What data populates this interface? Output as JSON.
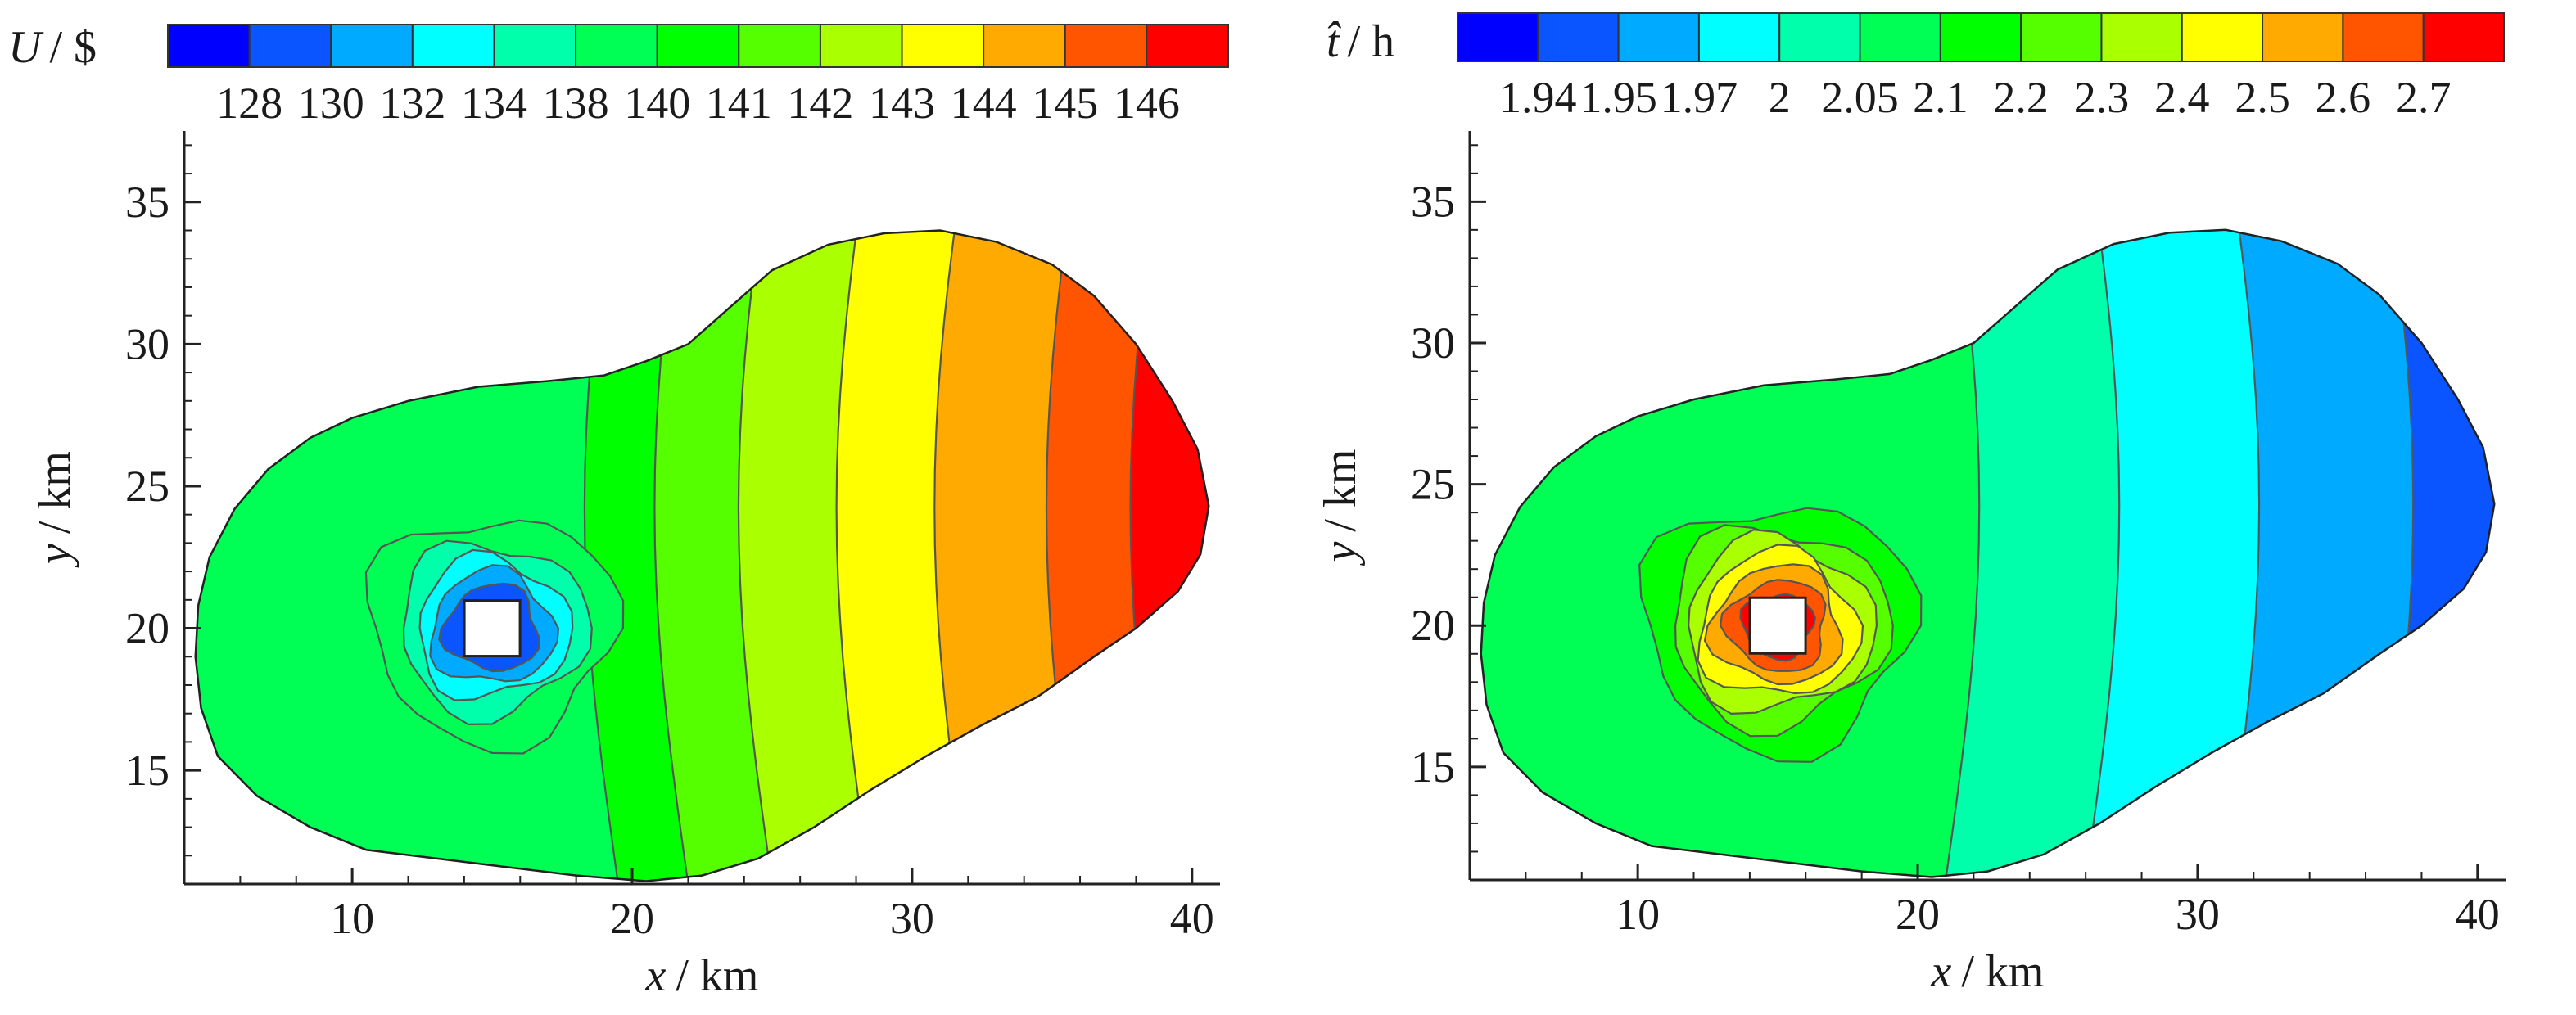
{
  "chart_data": [
    {
      "type": "heatmap",
      "subtype": "filled-contour",
      "colorbar": {
        "label_var": "U",
        "label_unit": "/ $",
        "levels": [
          "128",
          "130",
          "132",
          "134",
          "138",
          "140",
          "141",
          "142",
          "143",
          "144",
          "145",
          "146"
        ],
        "colors": [
          "#0000ff",
          "#0a55ff",
          "#00aaff",
          "#00ffff",
          "#00ffaa",
          "#00ff55",
          "#00ff00",
          "#55ff00",
          "#aaff00",
          "#ffff00",
          "#ffaa00",
          "#ff5500",
          "#ff0000"
        ]
      },
      "xlabel_var": "x",
      "xlabel_unit": "/ km",
      "ylabel_var": "y",
      "ylabel_unit": "/ km",
      "xlim": [
        4,
        41
      ],
      "ylim": [
        11,
        37.5
      ],
      "xticks": [
        "10",
        "20",
        "30",
        "40"
      ],
      "xtick_values": [
        10,
        20,
        30,
        40
      ],
      "yticks": [
        "15",
        "20",
        "25",
        "30",
        "35"
      ],
      "ytick_values": [
        15,
        20,
        25,
        30,
        35
      ],
      "depot": {
        "x": 15,
        "y": 20
      },
      "field": {
        "kind": "radial_then_linear",
        "center": [
          15,
          20
        ],
        "inner_levels": [
          {
            "r": 1.6,
            "color_index": 1
          },
          {
            "r": 2.1,
            "color_index": 2
          },
          {
            "r": 2.6,
            "color_index": 3
          },
          {
            "r": 3.2,
            "color_index": 4
          },
          {
            "r": 4.2,
            "color_index": 5
          }
        ],
        "bands_x": [
          {
            "x0": 19.5,
            "color_index": 6
          },
          {
            "x0": 22.0,
            "color_index": 7
          },
          {
            "x0": 25.0,
            "color_index": 8
          },
          {
            "x0": 28.5,
            "color_index": 9
          },
          {
            "x0": 32.0,
            "color_index": 10
          },
          {
            "x0": 36.0,
            "color_index": 11
          },
          {
            "x0": 39.0,
            "color_index": 12
          }
        ],
        "base_color_index": 5
      }
    },
    {
      "type": "heatmap",
      "subtype": "filled-contour",
      "colorbar": {
        "label_var": "t̂",
        "label_unit": "/ h",
        "levels": [
          "1.94",
          "1.95",
          "1.97",
          "2",
          "2.05",
          "2.1",
          "2.2",
          "2.3",
          "2.4",
          "2.5",
          "2.6",
          "2.7"
        ],
        "colors": [
          "#0000ff",
          "#0a55ff",
          "#00aaff",
          "#00ffff",
          "#00ffaa",
          "#00ff55",
          "#00ff00",
          "#55ff00",
          "#aaff00",
          "#ffff00",
          "#ffaa00",
          "#ff5500",
          "#ff0000"
        ]
      },
      "xlabel_var": "x",
      "xlabel_unit": "/ km",
      "ylabel_var": "y",
      "ylabel_unit": "/ km",
      "xlim": [
        4,
        41
      ],
      "ylim": [
        11,
        37.5
      ],
      "xticks": [
        "10",
        "20",
        "30",
        "40"
      ],
      "xtick_values": [
        10,
        20,
        30,
        40
      ],
      "yticks": [
        "15",
        "20",
        "25",
        "30",
        "35"
      ],
      "ytick_values": [
        15,
        20,
        25,
        30,
        35
      ],
      "depot": {
        "x": 15,
        "y": 20
      },
      "field": {
        "kind": "hotspot_then_linear",
        "center": [
          15,
          20
        ],
        "inner_levels": [
          {
            "r": 1.2,
            "color_index": 12
          },
          {
            "r": 1.7,
            "color_index": 11
          },
          {
            "r": 2.2,
            "color_index": 10
          },
          {
            "r": 2.7,
            "color_index": 9
          },
          {
            "r": 3.2,
            "color_index": 8
          },
          {
            "r": 3.7,
            "color_index": 7
          },
          {
            "r": 4.6,
            "color_index": 6
          }
        ],
        "bands_x": [
          {
            "x0": 21.0,
            "color_index": 4
          },
          {
            "x0": 26.0,
            "color_index": 3
          },
          {
            "x0": 31.0,
            "color_index": 2
          },
          {
            "x0": 36.5,
            "color_index": 1
          }
        ],
        "base_color_index": 5
      }
    }
  ]
}
